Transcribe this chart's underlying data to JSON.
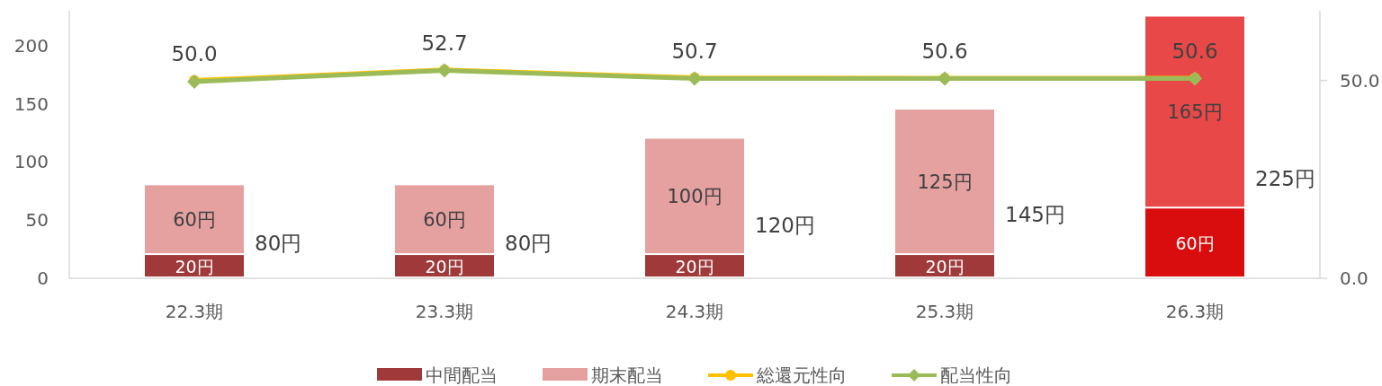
{
  "chart_data": {
    "type": "bar",
    "stacked": true,
    "categories": [
      "22.3期",
      "23.3期",
      "24.3期",
      "25.3期",
      "26.3期"
    ],
    "series": [
      {
        "name": "中間配当",
        "colors": [
          "#a03a3a",
          "#a03a3a",
          "#a03a3a",
          "#a03a3a",
          "#d90d0d"
        ],
        "values": [
          20,
          20,
          20,
          20,
          60
        ],
        "value_labels": [
          "20円",
          "20円",
          "20円",
          "20円",
          "60円"
        ]
      },
      {
        "name": "期末配当",
        "colors": [
          "#e5a0a0",
          "#e5a0a0",
          "#e5a0a0",
          "#e5a0a0",
          "#e84848"
        ],
        "values": [
          60,
          60,
          100,
          125,
          165
        ],
        "value_labels": [
          "60円",
          "60円",
          "100円",
          "125円",
          "165円"
        ]
      },
      {
        "name": "総還元性向",
        "type": "line",
        "axis": "y2",
        "color": "#ffc000",
        "marker": "circle",
        "values": [
          50.0,
          52.7,
          50.7,
          50.6,
          50.6
        ],
        "value_labels": [
          "50.0",
          "52.7",
          "50.7",
          "50.6",
          "50.6"
        ]
      },
      {
        "name": "配当性向",
        "type": "line",
        "axis": "y2",
        "color": "#9bbb59",
        "marker": "diamond",
        "values": [
          49.7,
          52.5,
          50.5,
          50.5,
          50.5
        ]
      }
    ],
    "totals": [
      "80円",
      "80円",
      "120円",
      "145円",
      "225円"
    ],
    "ylim": [
      0,
      230
    ],
    "yticks": [
      0,
      50,
      100,
      150,
      200
    ],
    "y2lim": [
      0,
      67.6
    ],
    "y2ticks": [
      {
        "value": 0,
        "label": "0.0"
      },
      {
        "value": 50,
        "label": "50.0"
      }
    ],
    "legend": "bottom",
    "grid": false
  }
}
